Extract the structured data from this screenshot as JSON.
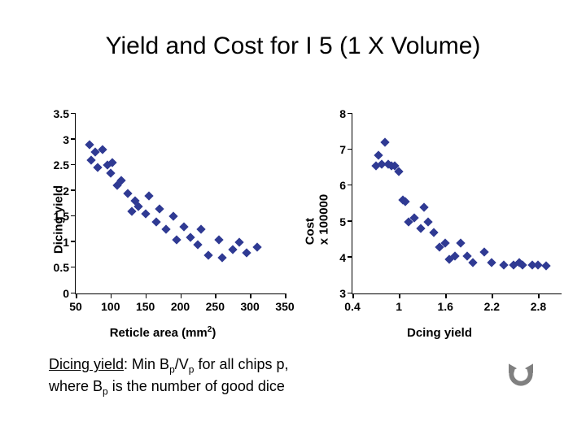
{
  "title": "Yield and Cost for I 5 (1 X Volume)",
  "caption_line1_prefix": "Dicing yield",
  "caption_line1_rest": ": Min B",
  "caption_line1_sub1": "p",
  "caption_line1_mid": "/V",
  "caption_line1_sub2": "p",
  "caption_line1_end": " for all chips p,",
  "caption_line2_a": "where B",
  "caption_line2_sub": "p",
  "caption_line2_b": " is the number of good dice",
  "marker_color": "#2f3a93",
  "chart_left": {
    "ylabel": "Dicing yield",
    "xlabel_main": "Reticle area (mm",
    "xlabel_sup": "2",
    "xlabel_close": ")",
    "ylim": [
      0,
      3.5
    ],
    "xlim": [
      50,
      350
    ],
    "yticks": [
      0,
      0.5,
      1,
      1.5,
      2,
      2.5,
      3,
      3.5
    ],
    "xticks": [
      50,
      100,
      150,
      200,
      250,
      300,
      350
    ],
    "points": [
      [
        70,
        2.9
      ],
      [
        72,
        2.6
      ],
      [
        78,
        2.75
      ],
      [
        82,
        2.45
      ],
      [
        88,
        2.8
      ],
      [
        95,
        2.5
      ],
      [
        100,
        2.35
      ],
      [
        102,
        2.55
      ],
      [
        110,
        2.1
      ],
      [
        115,
        2.2
      ],
      [
        125,
        1.95
      ],
      [
        130,
        1.6
      ],
      [
        135,
        1.8
      ],
      [
        140,
        1.7
      ],
      [
        150,
        1.55
      ],
      [
        155,
        1.9
      ],
      [
        165,
        1.4
      ],
      [
        170,
        1.65
      ],
      [
        180,
        1.25
      ],
      [
        190,
        1.5
      ],
      [
        195,
        1.05
      ],
      [
        205,
        1.3
      ],
      [
        215,
        1.1
      ],
      [
        225,
        0.95
      ],
      [
        230,
        1.25
      ],
      [
        240,
        0.75
      ],
      [
        255,
        1.05
      ],
      [
        260,
        0.7
      ],
      [
        275,
        0.85
      ],
      [
        285,
        1.0
      ],
      [
        295,
        0.8
      ],
      [
        310,
        0.9
      ]
    ]
  },
  "chart_right": {
    "ylabel": "Cost",
    "ylabel_extra": "x 100000",
    "xlabel": "Dcing yield",
    "ylim": [
      3,
      8
    ],
    "xlim": [
      0.4,
      3.1
    ],
    "yticks": [
      3,
      4,
      5,
      6,
      7,
      8
    ],
    "xticks": [
      0.4,
      1,
      1.6,
      2.2,
      2.8
    ],
    "points": [
      [
        0.7,
        6.55
      ],
      [
        0.74,
        6.85
      ],
      [
        0.78,
        6.6
      ],
      [
        0.82,
        7.2
      ],
      [
        0.86,
        6.6
      ],
      [
        0.9,
        6.55
      ],
      [
        0.95,
        6.55
      ],
      [
        1.0,
        6.4
      ],
      [
        1.05,
        5.6
      ],
      [
        1.08,
        5.55
      ],
      [
        1.12,
        5.0
      ],
      [
        1.2,
        5.1
      ],
      [
        1.28,
        4.8
      ],
      [
        1.32,
        5.4
      ],
      [
        1.38,
        5.0
      ],
      [
        1.45,
        4.7
      ],
      [
        1.52,
        4.3
      ],
      [
        1.6,
        4.4
      ],
      [
        1.65,
        3.95
      ],
      [
        1.72,
        4.05
      ],
      [
        1.8,
        4.4
      ],
      [
        1.88,
        4.05
      ],
      [
        1.95,
        3.85
      ],
      [
        2.1,
        4.15
      ],
      [
        2.2,
        3.85
      ],
      [
        2.35,
        3.8
      ],
      [
        2.48,
        3.8
      ],
      [
        2.55,
        3.85
      ],
      [
        2.6,
        3.8
      ],
      [
        2.72,
        3.8
      ],
      [
        2.8,
        3.8
      ],
      [
        2.9,
        3.78
      ]
    ]
  }
}
